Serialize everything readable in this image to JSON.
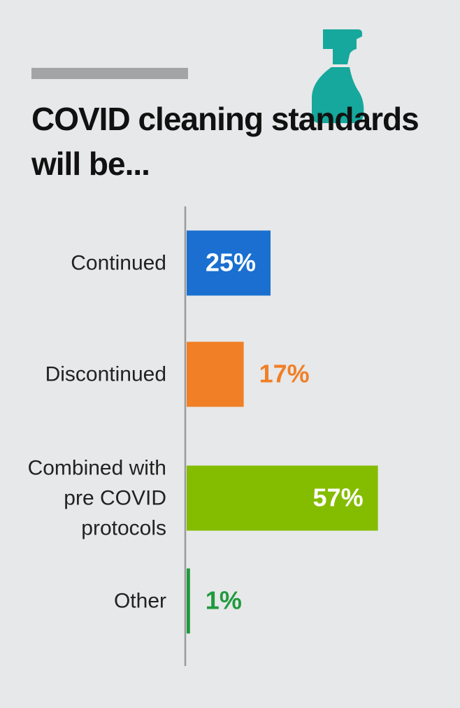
{
  "chart_data": {
    "type": "bar",
    "orientation": "horizontal",
    "title": "COVID cleaning standards will be...",
    "categories": [
      "Continued",
      "Discontinued",
      "Combined with pre COVID protocols",
      "Other"
    ],
    "values": [
      25,
      17,
      57,
      1
    ],
    "value_labels": [
      "25%",
      "17%",
      "57%",
      "1%"
    ],
    "colors": [
      "#1a6fd0",
      "#f07f26",
      "#84bc00",
      "#1f9a3c"
    ]
  }
}
